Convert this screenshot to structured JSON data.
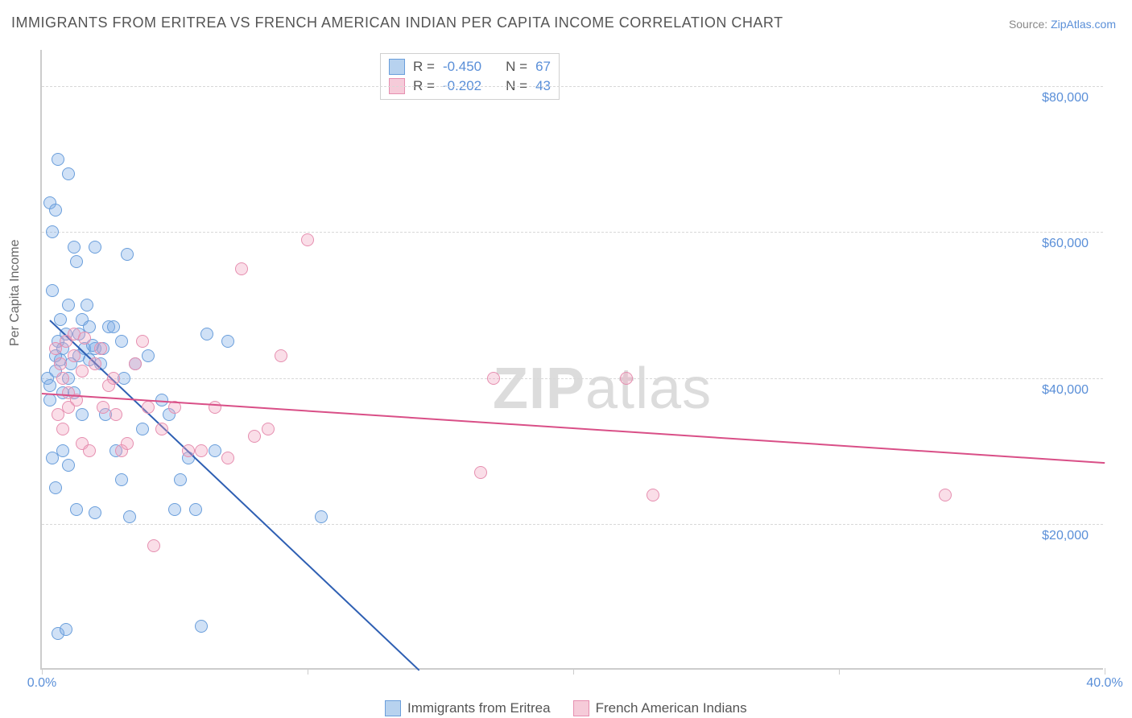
{
  "title": "IMMIGRANTS FROM ERITREA VS FRENCH AMERICAN INDIAN PER CAPITA INCOME CORRELATION CHART",
  "source_prefix": "Source: ",
  "source_link": "ZipAtlas.com",
  "y_axis_label": "Per Capita Income",
  "watermark_bold": "ZIP",
  "watermark_rest": "atlas",
  "chart": {
    "type": "scatter",
    "xlim": [
      0,
      40
    ],
    "ylim": [
      0,
      85000
    ],
    "x_tick_positions": [
      0,
      10,
      20,
      30,
      40
    ],
    "x_tick_labels": [
      "0.0%",
      "",
      "",
      "",
      "40.0%"
    ],
    "y_gridlines": [
      20000,
      40000,
      60000,
      80000
    ],
    "y_tick_labels": [
      "$20,000",
      "$40,000",
      "$60,000",
      "$80,000"
    ],
    "background_color": "#ffffff",
    "grid_color": "#d8d8d8",
    "axis_color": "#cccccc",
    "tick_label_color": "#5a8fd8",
    "marker_radius": 8,
    "marker_border_width": 1,
    "series": [
      {
        "name": "Immigrants from Eritrea",
        "fill": "rgba(120,170,230,0.35)",
        "stroke": "#6a9edb",
        "swatch_fill": "#b7d2ef",
        "swatch_stroke": "#6a9edb",
        "R": "-0.450",
        "N": "67",
        "trend": {
          "x1": 0.3,
          "y1": 48000,
          "x2": 14.2,
          "y2": 0,
          "color": "#2e5fb3",
          "width": 2
        },
        "points": [
          [
            0.3,
            64000
          ],
          [
            0.5,
            63000
          ],
          [
            0.4,
            52000
          ],
          [
            0.6,
            45000
          ],
          [
            0.5,
            41000
          ],
          [
            0.7,
            48000
          ],
          [
            0.8,
            38000
          ],
          [
            0.3,
            37000
          ],
          [
            0.4,
            29000
          ],
          [
            0.5,
            25000
          ],
          [
            1.0,
            68000
          ],
          [
            1.2,
            58000
          ],
          [
            1.3,
            56000
          ],
          [
            1.5,
            48000
          ],
          [
            1.4,
            46000
          ],
          [
            1.6,
            44000
          ],
          [
            1.8,
            42500
          ],
          [
            1.0,
            40000
          ],
          [
            1.2,
            38000
          ],
          [
            1.5,
            35000
          ],
          [
            0.6,
            70000
          ],
          [
            0.8,
            30000
          ],
          [
            1.0,
            28000
          ],
          [
            1.3,
            22000
          ],
          [
            0.6,
            5000
          ],
          [
            0.4,
            60000
          ],
          [
            2.0,
            58000
          ],
          [
            2.5,
            47000
          ],
          [
            2.2,
            42000
          ],
          [
            2.0,
            44000
          ],
          [
            2.4,
            35000
          ],
          [
            2.8,
            30000
          ],
          [
            3.0,
            45000
          ],
          [
            3.2,
            57000
          ],
          [
            3.5,
            42000
          ],
          [
            3.0,
            26000
          ],
          [
            3.3,
            21000
          ],
          [
            1.8,
            47000
          ],
          [
            1.7,
            50000
          ],
          [
            1.9,
            44500
          ],
          [
            0.9,
            46000
          ],
          [
            1.1,
            42000
          ],
          [
            0.7,
            42500
          ],
          [
            4.0,
            43000
          ],
          [
            4.5,
            37000
          ],
          [
            3.8,
            33000
          ],
          [
            5.0,
            22000
          ],
          [
            4.8,
            35000
          ],
          [
            5.5,
            29000
          ],
          [
            5.2,
            26000
          ],
          [
            6.0,
            6000
          ],
          [
            6.2,
            46000
          ],
          [
            6.5,
            30000
          ],
          [
            7.0,
            45000
          ],
          [
            5.8,
            22000
          ],
          [
            0.2,
            40000
          ],
          [
            0.3,
            39000
          ],
          [
            0.5,
            43000
          ],
          [
            0.8,
            44000
          ],
          [
            1.0,
            50000
          ],
          [
            2.3,
            44000
          ],
          [
            2.7,
            47000
          ],
          [
            3.1,
            40000
          ],
          [
            10.5,
            21000
          ],
          [
            1.4,
            43000
          ],
          [
            0.9,
            5500
          ],
          [
            2.0,
            21500
          ]
        ]
      },
      {
        "name": "French American Indians",
        "fill": "rgba(240,160,190,0.35)",
        "stroke": "#e68fb0",
        "swatch_fill": "#f6cbd9",
        "swatch_stroke": "#e68fb0",
        "R": "-0.202",
        "N": "43",
        "trend": {
          "x1": 0,
          "y1": 38000,
          "x2": 40,
          "y2": 28500,
          "color": "#d94f87",
          "width": 2
        },
        "points": [
          [
            0.5,
            44000
          ],
          [
            0.7,
            42000
          ],
          [
            0.8,
            40000
          ],
          [
            1.0,
            38000
          ],
          [
            1.2,
            43000
          ],
          [
            1.5,
            41000
          ],
          [
            1.3,
            37000
          ],
          [
            1.0,
            36000
          ],
          [
            0.6,
            35000
          ],
          [
            0.8,
            33000
          ],
          [
            1.5,
            31000
          ],
          [
            2.0,
            42000
          ],
          [
            2.2,
            44000
          ],
          [
            2.5,
            39000
          ],
          [
            2.3,
            36000
          ],
          [
            2.8,
            35000
          ],
          [
            3.0,
            30000
          ],
          [
            3.2,
            31000
          ],
          [
            3.5,
            42000
          ],
          [
            4.0,
            36000
          ],
          [
            4.5,
            33000
          ],
          [
            5.0,
            36000
          ],
          [
            5.5,
            30000
          ],
          [
            4.2,
            17000
          ],
          [
            6.0,
            30000
          ],
          [
            6.5,
            36000
          ],
          [
            7.0,
            29000
          ],
          [
            7.5,
            55000
          ],
          [
            8.0,
            32000
          ],
          [
            9.0,
            43000
          ],
          [
            10.0,
            59000
          ],
          [
            8.5,
            33000
          ],
          [
            16.5,
            27000
          ],
          [
            17.0,
            40000
          ],
          [
            22.0,
            40000
          ],
          [
            23.0,
            24000
          ],
          [
            34.0,
            24000
          ],
          [
            1.8,
            30000
          ],
          [
            1.2,
            46000
          ],
          [
            0.9,
            45000
          ],
          [
            2.7,
            40000
          ],
          [
            3.8,
            45000
          ],
          [
            1.6,
            45500
          ]
        ]
      }
    ]
  },
  "stats_legend": {
    "R_label": "R =",
    "N_label": "N ="
  },
  "bottom_legend_labels": [
    "Immigrants from Eritrea",
    "French American Indians"
  ]
}
